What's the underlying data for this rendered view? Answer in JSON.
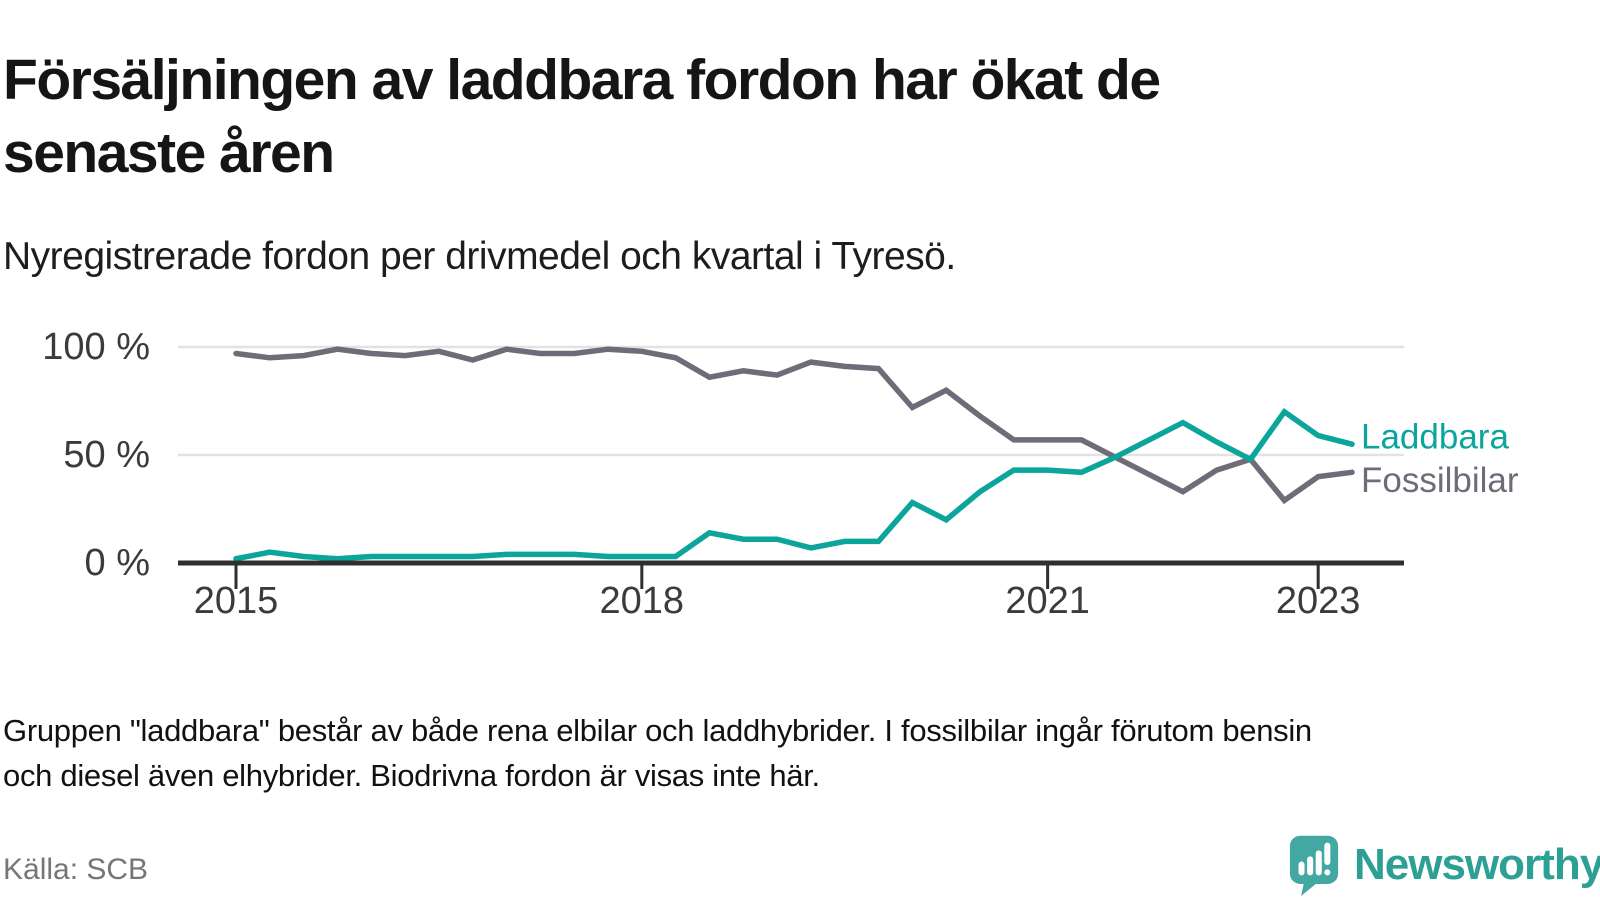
{
  "header": {
    "title": "Försäljningen av laddbara fordon har ökat de\nsenaste åren",
    "subtitle": "Nyregistrerade fordon per drivmedel och kvartal i Tyresö."
  },
  "chart_data": {
    "type": "line",
    "unit": "%",
    "quarters": [
      "2015 Q1",
      "2015 Q2",
      "2015 Q3",
      "2015 Q4",
      "2016 Q1",
      "2016 Q2",
      "2016 Q3",
      "2016 Q4",
      "2017 Q1",
      "2017 Q2",
      "2017 Q3",
      "2017 Q4",
      "2018 Q1",
      "2018 Q2",
      "2018 Q3",
      "2018 Q4",
      "2019 Q1",
      "2019 Q2",
      "2019 Q3",
      "2019 Q4",
      "2020 Q1",
      "2020 Q2",
      "2020 Q3",
      "2020 Q4",
      "2021 Q1",
      "2021 Q2",
      "2021 Q3",
      "2021 Q4",
      "2022 Q1",
      "2022 Q2",
      "2022 Q3",
      "2022 Q4",
      "2023 Q1",
      "2023 Q2"
    ],
    "series": [
      {
        "name": "Fossilbilar",
        "color": "#6f6b78",
        "values": [
          97,
          95,
          96,
          99,
          97,
          96,
          98,
          94,
          99,
          97,
          97,
          99,
          98,
          95,
          86,
          89,
          87,
          93,
          91,
          90,
          72,
          80,
          68,
          57,
          57,
          57,
          49,
          41,
          33,
          43,
          48,
          29,
          40,
          42
        ]
      },
      {
        "name": "Laddbara",
        "color": "#0ba59c",
        "values": [
          2,
          5,
          3,
          2,
          3,
          3,
          3,
          3,
          4,
          4,
          4,
          3,
          3,
          3,
          14,
          11,
          11,
          7,
          10,
          10,
          28,
          20,
          33,
          43,
          43,
          42,
          49,
          57,
          65,
          56,
          48,
          70,
          59,
          55
        ]
      }
    ],
    "y_ticks": [
      {
        "value": 100,
        "label": "100 %"
      },
      {
        "value": 50,
        "label": "50 %"
      },
      {
        "value": 0,
        "label": "0 %"
      }
    ],
    "x_ticks": [
      {
        "index": 0,
        "label": "2015"
      },
      {
        "index": 12,
        "label": "2018"
      },
      {
        "index": 24,
        "label": "2021"
      },
      {
        "index": 32,
        "label": "2023"
      }
    ],
    "ylim": [
      0,
      100
    ],
    "grid": "horizontal",
    "legend_position": "right-of-line-ends"
  },
  "footnote": {
    "text": "Gruppen \"laddbara\" består av både rena elbilar och laddhybrider. I fossilbilar ingår förutom bensin\noch diesel även elhybrider. Biodrivna fordon är visas inte här."
  },
  "footer": {
    "source": "Källa: SCB",
    "brand": "Newsworthy"
  },
  "colors": {
    "accent_teal": "#0ba59c",
    "line_gray": "#6f6b78",
    "axis": "#333333",
    "grid": "#e2e2e2",
    "tick_text": "#3b3b3b",
    "muted_text": "#76757a",
    "brand_teal": "#2da096",
    "brand_icon": "#43a8a1"
  }
}
